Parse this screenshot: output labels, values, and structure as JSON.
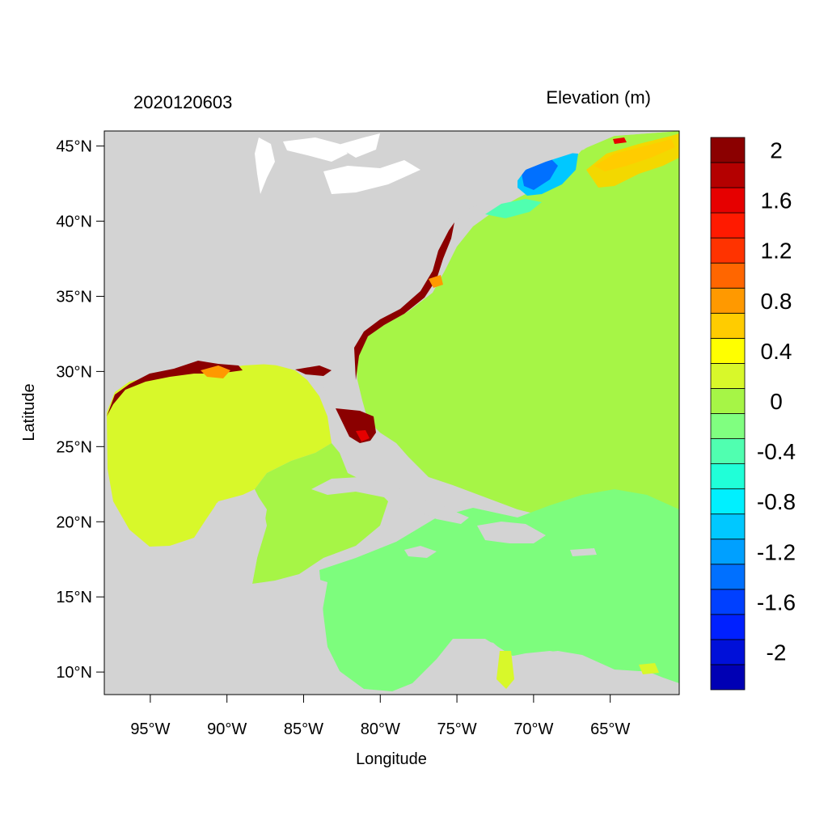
{
  "figure": {
    "left_title": "2020120603",
    "right_title": "Elevation (m)",
    "xlabel": "Longitude",
    "ylabel": "Latitude"
  },
  "map": {
    "xlim": [
      -98,
      -60.5
    ],
    "ylim": [
      8.5,
      46
    ],
    "x_ticks": [
      {
        "value": -95,
        "label": "95°W"
      },
      {
        "value": -90,
        "label": "90°W"
      },
      {
        "value": -85,
        "label": "85°W"
      },
      {
        "value": -80,
        "label": "80°W"
      },
      {
        "value": -75,
        "label": "75°W"
      },
      {
        "value": -70,
        "label": "70°W"
      },
      {
        "value": -65,
        "label": "65°W"
      }
    ],
    "y_ticks": [
      {
        "value": 45,
        "label": "45°N"
      },
      {
        "value": 40,
        "label": "40°N"
      },
      {
        "value": 35,
        "label": "35°N"
      },
      {
        "value": 30,
        "label": "30°N"
      },
      {
        "value": 25,
        "label": "25°N"
      },
      {
        "value": 20,
        "label": "20°N"
      },
      {
        "value": 15,
        "label": "15°N"
      },
      {
        "value": 10,
        "label": "10°N"
      }
    ],
    "colors": {
      "land": "#d3d3d3",
      "gulf": "#d8f82a",
      "atlantic": "#a6f546",
      "caribbean": "#7dfd7d",
      "northeast_high": "#f3d800",
      "northeast_low": "#00a5ff",
      "coastal_high": "#8b0000"
    }
  },
  "colorbar": {
    "colors": [
      "#0000b4",
      "#0010d9",
      "#0020ff",
      "#0040ff",
      "#0070ff",
      "#00a0ff",
      "#00c8ff",
      "#00f0ff",
      "#20ffd8",
      "#50ffb0",
      "#80ff80",
      "#a6f546",
      "#d8f82a",
      "#ffff00",
      "#ffcc00",
      "#ff9900",
      "#ff6600",
      "#ff3300",
      "#ff1a00",
      "#e60000",
      "#b40000",
      "#8b0000"
    ],
    "labels": [
      "-2",
      "-1.6",
      "-1.2",
      "-0.8",
      "-0.4",
      "0",
      "0.4",
      "0.8",
      "1.2",
      "1.6",
      "2"
    ]
  }
}
